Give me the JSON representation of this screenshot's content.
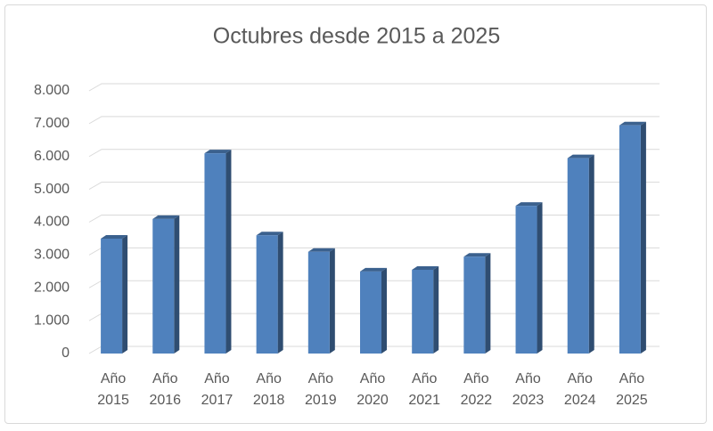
{
  "chart_data": {
    "type": "bar",
    "title": "Octubres desde 2015 a 2025",
    "categories": [
      "Año 2015",
      "Año 2016",
      "Año 2017",
      "Año 2018",
      "Año 2019",
      "Año 2020",
      "Año 2021",
      "Año 2022",
      "Año 2023",
      "Año 2024",
      "Año 2025"
    ],
    "values": [
      3500,
      4100,
      6100,
      3600,
      3100,
      2500,
      2550,
      2950,
      4500,
      5950,
      6950
    ],
    "color": "#4f81bd",
    "ylim": [
      0,
      8000
    ],
    "yticks": [
      0,
      {
        "value": 1000,
        "label": "1.000"
      },
      {
        "value": 2000,
        "label": "2.000"
      },
      {
        "value": 3000,
        "label": "3.000"
      },
      {
        "value": 4000,
        "label": "4.000"
      },
      {
        "value": 5000,
        "label": "5.000"
      },
      {
        "value": 6000,
        "label": "6.000"
      },
      {
        "value": 7000,
        "label": "7.000"
      },
      {
        "value": 8000,
        "label": "8.000"
      }
    ],
    "grid": true
  }
}
